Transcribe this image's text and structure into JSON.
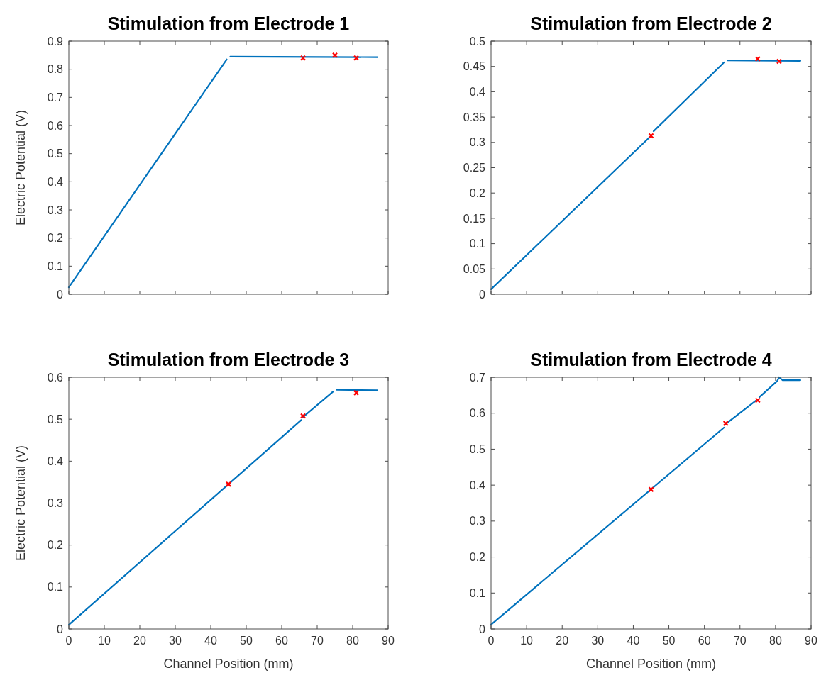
{
  "chart_data": [
    {
      "type": "line",
      "title": "Stimulation from Electrode 1",
      "ylabel": "Electric Potential (V)",
      "xlim": [
        0,
        90
      ],
      "xticks": [
        0,
        10,
        20,
        30,
        40,
        50,
        60,
        70,
        80,
        90
      ],
      "ylim": [
        0,
        0.9
      ],
      "yticks": [
        0,
        0.1,
        0.2,
        0.3,
        0.4,
        0.5,
        0.6,
        0.7,
        0.8,
        0.9
      ],
      "tick_labels": "y",
      "grid": false,
      "series": [
        {
          "color": "#0072bd",
          "x": [
            0,
            44.5,
            45,
            45.5,
            87
          ],
          "values": [
            0.025,
            0.835,
            null,
            0.845,
            0.843
          ],
          "marker": "none"
        },
        {
          "type": "scatter",
          "color": "#ff0000",
          "x": [
            66,
            75,
            81
          ],
          "values": [
            0.84,
            0.85,
            0.84
          ],
          "marker": "cross"
        }
      ]
    },
    {
      "type": "line",
      "title": "Stimulation from Electrode 2",
      "xlim": [
        0,
        90
      ],
      "xticks": [
        0,
        10,
        20,
        30,
        40,
        50,
        60,
        70,
        80,
        90
      ],
      "ylim": [
        0,
        0.5
      ],
      "yticks": [
        0,
        0.05,
        0.1,
        0.15,
        0.2,
        0.25,
        0.3,
        0.35,
        0.4,
        0.45,
        0.5
      ],
      "tick_labels": "y",
      "grid": false,
      "series": [
        {
          "color": "#0072bd",
          "x": [
            0,
            45,
            45.3,
            45.7,
            65.5,
            66,
            66.5,
            87
          ],
          "values": [
            0.01,
            0.313,
            null,
            0.322,
            0.458,
            null,
            0.462,
            0.461
          ],
          "marker": "none"
        },
        {
          "type": "scatter",
          "color": "#ff0000",
          "x": [
            45,
            75,
            81
          ],
          "values": [
            0.313,
            0.465,
            0.46
          ],
          "marker": "cross"
        }
      ]
    },
    {
      "type": "line",
      "title": "Stimulation from Electrode 3",
      "xlabel": "Channel Position (mm)",
      "ylabel": "Electric Potential (V)",
      "xlim": [
        0,
        90
      ],
      "xticks": [
        0,
        10,
        20,
        30,
        40,
        50,
        60,
        70,
        80,
        90
      ],
      "ylim": [
        0,
        0.6
      ],
      "yticks": [
        0,
        0.1,
        0.2,
        0.3,
        0.4,
        0.5,
        0.6
      ],
      "grid": false,
      "series": [
        {
          "color": "#0072bd",
          "x": [
            0,
            65.5,
            65.8,
            66,
            74.5,
            75,
            75.5,
            87
          ],
          "values": [
            0.01,
            0.498,
            null,
            0.505,
            0.566,
            null,
            0.57,
            0.569
          ],
          "marker": "none"
        },
        {
          "type": "scatter",
          "color": "#ff0000",
          "x": [
            45,
            66,
            81
          ],
          "values": [
            0.345,
            0.508,
            0.563
          ],
          "marker": "cross"
        }
      ]
    },
    {
      "type": "line",
      "title": "Stimulation from Electrode 4",
      "xlabel": "Channel Position (mm)",
      "xlim": [
        0,
        90
      ],
      "xticks": [
        0,
        10,
        20,
        30,
        40,
        50,
        60,
        70,
        80,
        90
      ],
      "ylim": [
        0,
        0.7
      ],
      "yticks": [
        0,
        0.1,
        0.2,
        0.3,
        0.4,
        0.5,
        0.6,
        0.7
      ],
      "grid": false,
      "series": [
        {
          "color": "#0072bd",
          "x": [
            0,
            65.5,
            65.8,
            66,
            74.5,
            75,
            75.5,
            80.5,
            81,
            82,
            87
          ],
          "values": [
            0.012,
            0.56,
            null,
            0.57,
            0.635,
            null,
            0.645,
            0.69,
            0.7,
            0.692,
            0.692
          ],
          "marker": "none"
        },
        {
          "type": "scatter",
          "color": "#ff0000",
          "x": [
            45,
            66,
            75
          ],
          "values": [
            0.388,
            0.572,
            0.636
          ],
          "marker": "cross"
        }
      ]
    }
  ]
}
